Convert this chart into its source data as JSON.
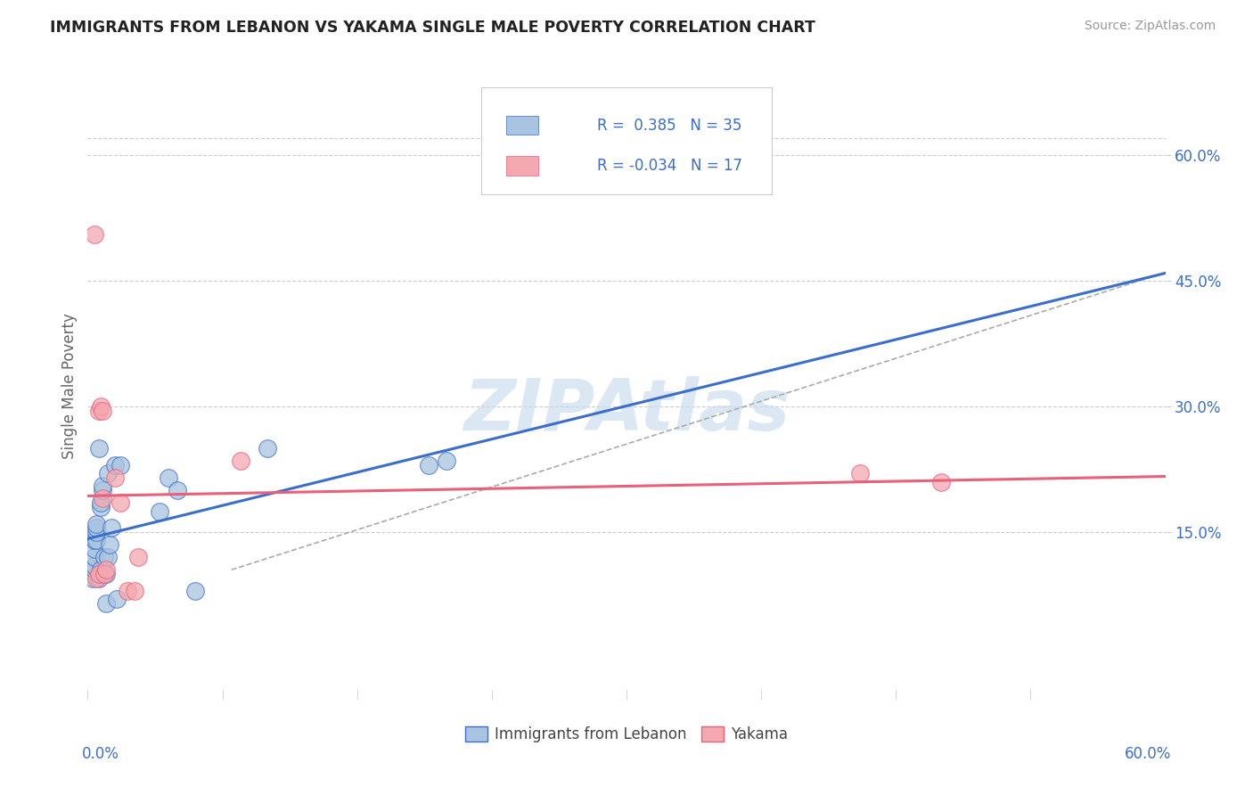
{
  "title": "IMMIGRANTS FROM LEBANON VS YAKAMA SINGLE MALE POVERTY CORRELATION CHART",
  "source": "Source: ZipAtlas.com",
  "ylabel": "Single Male Poverty",
  "legend_label1": "Immigrants from Lebanon",
  "legend_label2": "Yakama",
  "r1": 0.385,
  "n1": 35,
  "r2": -0.034,
  "n2": 17,
  "xlim": [
    0.0,
    0.6
  ],
  "ylim": [
    -0.05,
    0.7
  ],
  "x_left_label": "0.0%",
  "x_right_label": "60.0%",
  "right_ytick_vals": [
    0.15,
    0.3,
    0.45,
    0.6
  ],
  "right_ytick_labels": [
    "15.0%",
    "30.0%",
    "45.0%",
    "60.0%"
  ],
  "blue_color": "#A8C4E0",
  "pink_color": "#F4A8B0",
  "blue_line_color": "#3B6ECC",
  "pink_line_color": "#E8607A",
  "watermark": "ZIPAtlas",
  "watermark_color": "#C5D8EE",
  "grid_color": "#CCCCCC",
  "dashed_line_color": "#AAAAAA",
  "blue_points_x": [
    0.003,
    0.004,
    0.004,
    0.004,
    0.004,
    0.004,
    0.005,
    0.005,
    0.005,
    0.005,
    0.006,
    0.006,
    0.007,
    0.007,
    0.007,
    0.007,
    0.008,
    0.008,
    0.009,
    0.01,
    0.01,
    0.011,
    0.011,
    0.012,
    0.013,
    0.015,
    0.016,
    0.018,
    0.04,
    0.045,
    0.05,
    0.06,
    0.1,
    0.19,
    0.2
  ],
  "blue_points_y": [
    0.095,
    0.105,
    0.11,
    0.12,
    0.13,
    0.14,
    0.14,
    0.15,
    0.155,
    0.16,
    0.095,
    0.25,
    0.1,
    0.105,
    0.18,
    0.185,
    0.2,
    0.205,
    0.12,
    0.065,
    0.1,
    0.12,
    0.22,
    0.135,
    0.155,
    0.23,
    0.07,
    0.23,
    0.175,
    0.215,
    0.2,
    0.08,
    0.25,
    0.23,
    0.235
  ],
  "pink_points_x": [
    0.004,
    0.005,
    0.006,
    0.006,
    0.007,
    0.008,
    0.008,
    0.009,
    0.01,
    0.015,
    0.018,
    0.022,
    0.026,
    0.028,
    0.085,
    0.43,
    0.475
  ],
  "pink_points_y": [
    0.505,
    0.095,
    0.1,
    0.295,
    0.3,
    0.19,
    0.295,
    0.1,
    0.105,
    0.215,
    0.185,
    0.08,
    0.08,
    0.12,
    0.235,
    0.22,
    0.21
  ],
  "dashed_line_x0": 0.08,
  "dashed_line_y0": 0.105,
  "dashed_line_x1": 0.6,
  "dashed_line_y1": 0.46
}
